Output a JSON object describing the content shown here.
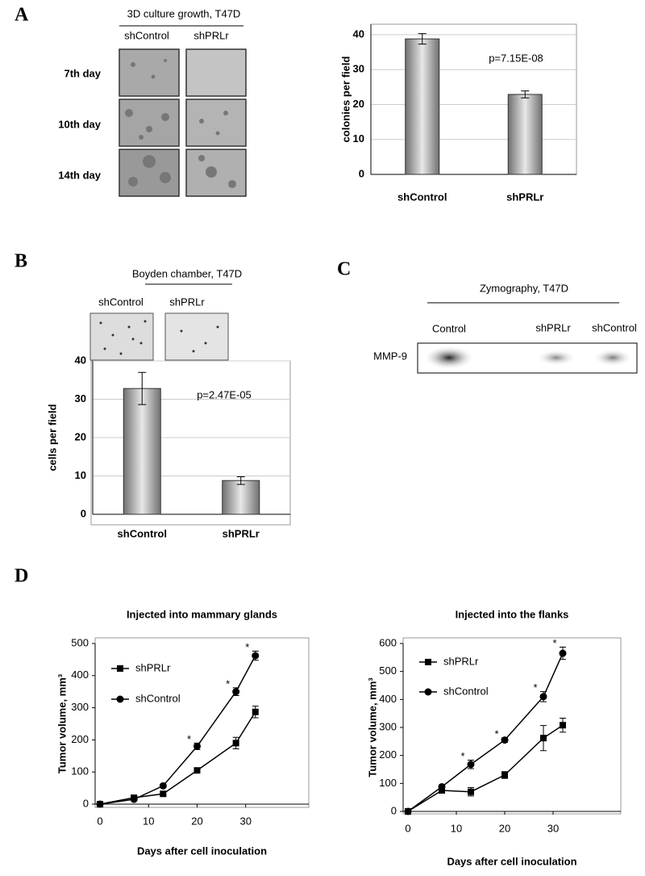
{
  "panel_labels": [
    "A",
    "B",
    "C",
    "D"
  ],
  "culture": {
    "title": "3D culture growth, T47D",
    "columns": [
      "shControl",
      "shPRLr"
    ],
    "rows": [
      "7th day",
      "10th day",
      "14th day"
    ]
  },
  "boyden": {
    "title": "Boyden chamber, T47D",
    "columns": [
      "shControl",
      "shPRLr"
    ]
  },
  "zymography": {
    "title": "Zymography, T47D",
    "lanes": [
      "Control",
      "shPRLr",
      "shControl"
    ],
    "band": "MMP-9"
  },
  "chart_data": [
    {
      "type": "bar",
      "ylabel": "colonies per field",
      "categories": [
        "shControl",
        "shPRLr"
      ],
      "values": [
        38.8,
        22.9
      ],
      "errors": [
        1.5,
        1.0
      ],
      "color": "#707070",
      "annotation": "p=7.15E-08",
      "ylim": [
        0,
        43
      ],
      "yticks": [
        0,
        10,
        20,
        30,
        40
      ],
      "grid": true
    },
    {
      "type": "bar",
      "ylabel": "cells per field",
      "categories": [
        "shControl",
        "shPRLr"
      ],
      "values": [
        32.8,
        8.8
      ],
      "errors": [
        4.2,
        1.0
      ],
      "color": "#707070",
      "annotation": "p=2.47E-05",
      "ylim": [
        0,
        40
      ],
      "yticks": [
        0,
        10,
        20,
        30,
        40
      ],
      "grid": true
    },
    {
      "type": "line",
      "title": "Injected into mammary glands",
      "xlabel": "Days after cell inoculation",
      "ylabel": "Tumor volume, mm³",
      "x": [
        0,
        7,
        13,
        20,
        28,
        32
      ],
      "series": [
        {
          "name": "shPRLr",
          "marker": "square",
          "color": "#000000",
          "values": [
            0,
            20,
            32,
            105,
            190,
            287
          ],
          "errors": [
            0,
            5,
            5,
            8,
            18,
            18
          ]
        },
        {
          "name": "shControl",
          "marker": "circle",
          "color": "#000000",
          "values": [
            0,
            15,
            57,
            180,
            350,
            462
          ],
          "errors": [
            0,
            3,
            5,
            10,
            12,
            14
          ]
        }
      ],
      "significance": {
        "label": "*",
        "x": [
          20,
          28,
          32
        ]
      },
      "xlim": [
        -1,
        43
      ],
      "ylim": [
        0,
        500
      ],
      "xticks": [
        0,
        10,
        20,
        30
      ],
      "yticks": [
        0,
        100,
        200,
        300,
        400,
        500
      ]
    },
    {
      "type": "line",
      "title": "Injected into the flanks",
      "xlabel": "Days after cell inoculation",
      "ylabel": "Tumor volume, mm³",
      "x": [
        0,
        7,
        13,
        20,
        28,
        32
      ],
      "series": [
        {
          "name": "shPRLr",
          "marker": "square",
          "color": "#000000",
          "values": [
            0,
            75,
            70,
            130,
            262,
            308
          ],
          "errors": [
            0,
            5,
            15,
            12,
            45,
            25
          ]
        },
        {
          "name": "shControl",
          "marker": "circle",
          "color": "#000000",
          "values": [
            0,
            88,
            168,
            255,
            410,
            565
          ],
          "errors": [
            0,
            5,
            15,
            8,
            18,
            22
          ]
        }
      ],
      "significance": {
        "label": "*",
        "x": [
          13,
          20,
          28,
          32
        ]
      },
      "xlim": [
        -1,
        44
      ],
      "ylim": [
        0,
        600
      ],
      "xticks": [
        0,
        10,
        20,
        30
      ],
      "yticks": [
        0,
        100,
        200,
        300,
        400,
        500,
        600
      ]
    }
  ]
}
